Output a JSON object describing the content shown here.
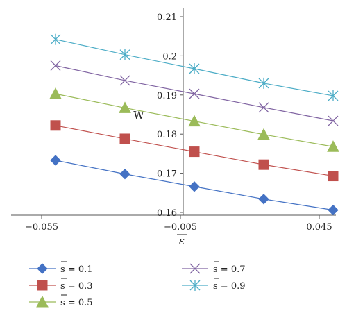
{
  "chart_data": {
    "type": "line",
    "x": [
      -0.05,
      -0.025,
      0.0,
      0.025,
      0.05
    ],
    "xlim": [
      -0.055,
      0.05
    ],
    "ylim": [
      0.16,
      0.21
    ],
    "xticks": [
      -0.055,
      -0.005,
      0.045
    ],
    "xtick_labels": [
      "−0.055",
      "−0.005",
      "0.045"
    ],
    "yticks": [
      0.16,
      0.17,
      0.18,
      0.19,
      0.2,
      0.21
    ],
    "ytick_labels": [
      "0.16",
      "0.17",
      "0.18",
      "0.19",
      "0.2",
      "0.21"
    ],
    "xlabel": "ε",
    "ylabel": "W",
    "legend_position": "bottom",
    "series": [
      {
        "name": "s = 0.1",
        "marker": "diamond",
        "color": "#4472C4",
        "values": [
          0.1733,
          0.1698,
          0.1666,
          0.1634,
          0.1606
        ]
      },
      {
        "name": "s = 0.3",
        "marker": "square",
        "color": "#C0504D",
        "values": [
          0.1822,
          0.1788,
          0.1755,
          0.1722,
          0.1693
        ]
      },
      {
        "name": "s = 0.5",
        "marker": "triangle",
        "color": "#9BBB59",
        "values": [
          0.1903,
          0.1867,
          0.1833,
          0.1799,
          0.1768
        ]
      },
      {
        "name": "s = 0.7",
        "marker": "x",
        "color": "#8064A2",
        "values": [
          0.1975,
          0.1937,
          0.1903,
          0.1868,
          0.1834
        ]
      },
      {
        "name": "s = 0.9",
        "marker": "star",
        "color": "#4BACC6",
        "values": [
          0.2042,
          0.2003,
          0.1967,
          0.193,
          0.1898
        ]
      }
    ]
  }
}
